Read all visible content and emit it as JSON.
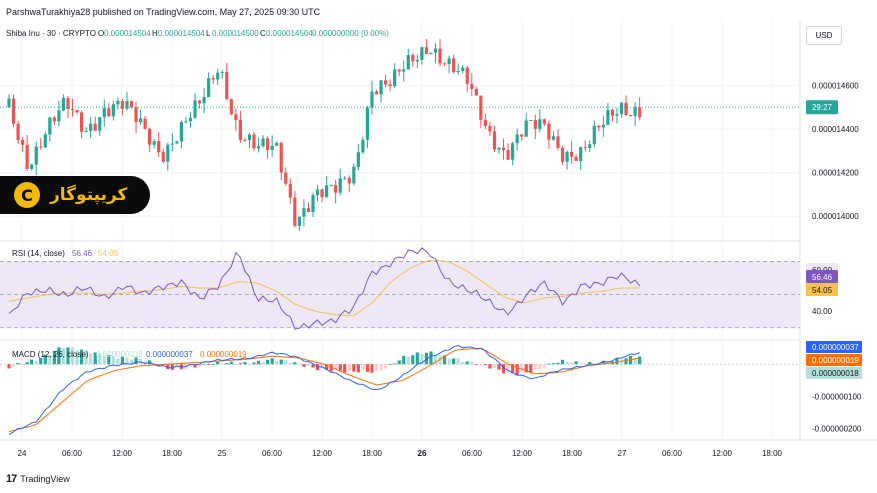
{
  "header": {
    "published": "ParshwaTurakhiya28 published on TradingView.com, May 27, 2025 09:30 UTC",
    "symbol": "Shiba Inu · 30 · CRYPTO",
    "ohlc": [
      {
        "k": "O",
        "v": "0.000014504"
      },
      {
        "k": "H",
        "v": "0.000014504"
      },
      {
        "k": "L",
        "v": "0.000014500"
      },
      {
        "k": "C",
        "v": "0.000014504"
      }
    ],
    "change": "0.000000000 (0.00%)",
    "currency": "USD"
  },
  "watermark": {
    "text": "کریپتوگار",
    "logo_letter": "C"
  },
  "footer": {
    "brand": "TradingView",
    "logo": "17"
  },
  "colors": {
    "up": "#26a69a",
    "down": "#ef5350",
    "rsi": "#7e57c2",
    "rsi_ma": "#f7c150",
    "rsi_band": "#ede7f6",
    "macd": "#2962ff",
    "signal": "#ff6d00",
    "hist_up_strong": "#26a69a",
    "hist_up_weak": "#b2dfdb",
    "hist_down_strong": "#ef5350",
    "hist_down_weak": "#ffcdd2",
    "grid": "#f0f3fa"
  },
  "chart_data": [
    {
      "name": "price",
      "type": "candlestick",
      "title": "Shiba Inu · 30 · CRYPTO",
      "ylim": [
        1.39e-05,
        1.49e-05
      ],
      "y_ticks": [
        "0.000014600",
        "0.000014400",
        "0.000014200",
        "0.000014000"
      ],
      "y_tick_values": [
        1.46e-05,
        1.44e-05,
        1.42e-05,
        1.4e-05
      ],
      "last_label": "29:27",
      "last_value": 1.45e-05,
      "keypoints_close": [
        1.45e-05,
        1.425e-05,
        1.44e-05,
        1.45e-05,
        1.44e-05,
        1.45e-05,
        1.45e-05,
        1.44e-05,
        1.43e-05,
        1.44e-05,
        1.45e-05,
        1.47e-05,
        1.44e-05,
        1.43e-05,
        1.43e-05,
        1.4e-05,
        1.41e-05,
        1.41e-05,
        1.42e-05,
        1.46e-05,
        1.46e-05,
        1.47e-05,
        1.48e-05,
        1.47e-05,
        1.46e-05,
        1.44e-05,
        1.43e-05,
        1.44e-05,
        1.44e-05,
        1.43e-05,
        1.43e-05,
        1.44e-05,
        1.45e-05,
        1.45e-05
      ]
    },
    {
      "name": "rsi",
      "type": "line",
      "title": "RSI (14, close)",
      "legend_values": [
        "56.46",
        "54.05"
      ],
      "ylim": [
        25,
        80
      ],
      "y_ticks": [
        "40.00"
      ],
      "y_tick_values": [
        40
      ],
      "band": [
        30,
        70
      ],
      "badge_values": [
        "60.00",
        "56.46",
        "54.05"
      ],
      "series": [
        {
          "name": "RSI",
          "keypoints": [
            35,
            52,
            55,
            48,
            53,
            50,
            56,
            48,
            55,
            60,
            46,
            54,
            78,
            48,
            44,
            30,
            35,
            33,
            40,
            65,
            70,
            74,
            76,
            60,
            52,
            45,
            40,
            50,
            55,
            45,
            58,
            56,
            60,
            57
          ]
        },
        {
          "name": "RSI MA",
          "keypoints": [
            46,
            48,
            50,
            51,
            51,
            50,
            51,
            52,
            53,
            55,
            54,
            54,
            58,
            57,
            52,
            44,
            40,
            38,
            37,
            45,
            58,
            66,
            71,
            70,
            64,
            56,
            48,
            45,
            48,
            49,
            51,
            52,
            54,
            54
          ]
        }
      ]
    },
    {
      "name": "macd",
      "type": "line+histogram",
      "title": "MACD (12, 26, close)",
      "legend_values": [
        "0.000000018",
        "0.000000037",
        "0.000000019"
      ],
      "ylim": [
        -2.3e-07,
        6e-08
      ],
      "y_ticks": [
        "-0.000000100",
        "-0.000000200"
      ],
      "y_tick_values": [
        -1e-07,
        -2e-07
      ],
      "badge_values": [
        "0.000000037",
        "0.000000019",
        "0.000000018"
      ],
      "series": [
        {
          "name": "MACD",
          "keypoints": [
            -2.2e-07,
            -1.8e-07,
            -8e-08,
            -2.5e-08,
            0.0,
            5e-09,
            -1e-08,
            0.0,
            1e-08,
            2e-08,
            3.5e-08,
            2e-08,
            -1e-08,
            -5.5e-08,
            -8e-08,
            -3.5e-08,
            2e-08,
            6e-08,
            4.5e-08,
            -2e-08,
            -4.5e-08,
            -2e-08,
            0.0,
            1e-08,
            3.7e-08
          ]
        },
        {
          "name": "Signal",
          "keypoints": [
            -2.1e-07,
            -1.9e-07,
            -1.2e-07,
            -5e-08,
            -2e-08,
            -5e-09,
            0.0,
            5e-09,
            1e-08,
            1.5e-08,
            2.5e-08,
            2e-08,
            0.0,
            -3.5e-08,
            -6.5e-08,
            -5e-08,
            -5e-09,
            4.5e-08,
            5e-08,
            0.0,
            -3e-08,
            -2.5e-08,
            -5e-09,
            5e-09,
            1.9e-08
          ]
        }
      ]
    }
  ],
  "x_axis": {
    "ticks": [
      "24",
      "06:00",
      "12:00",
      "18:00",
      "25",
      "06:00",
      "12:00",
      "18:00",
      "26",
      "06:00",
      "12:00",
      "18:00",
      "27",
      "06:00",
      "12:00",
      "18:00"
    ],
    "bold": [
      false,
      false,
      false,
      false,
      false,
      false,
      false,
      false,
      true,
      false,
      false,
      false,
      false,
      false,
      false,
      false
    ]
  }
}
